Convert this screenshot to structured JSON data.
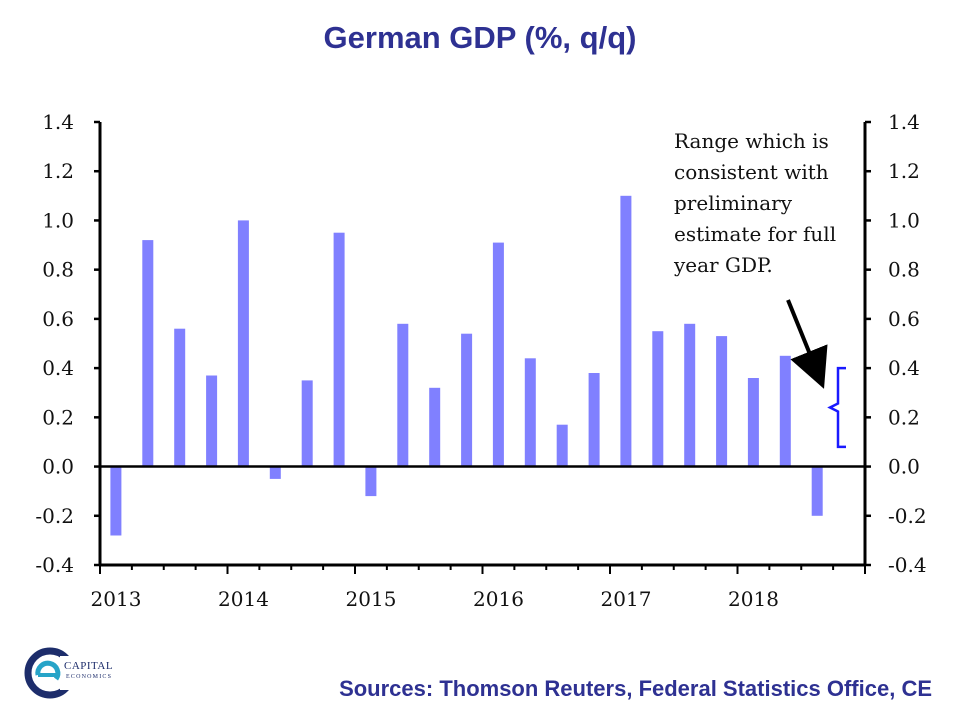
{
  "title": "German GDP (%, q/q)",
  "source": "Sources: Thomson Reuters, Federal Statistics Office, CE",
  "logo": {
    "name": "CAPITAL",
    "sub": "ECONOMICS"
  },
  "annotation": {
    "lines": [
      "Range which is",
      "consistent with",
      "preliminary",
      "estimate for full",
      "year GDP."
    ],
    "range": [
      0.08,
      0.4
    ]
  },
  "colors": {
    "bar": "#8080ff",
    "title": "#2e3192",
    "bracket": "#1a1aff"
  },
  "chart_data": {
    "type": "bar",
    "title": "German GDP (%, q/q)",
    "ylim": [
      -0.4,
      1.4
    ],
    "yticks": [
      "1.4",
      "1.2",
      "1.0",
      "0.8",
      "0.6",
      "0.4",
      "0.2",
      "0.0",
      "-0.2",
      "-0.4"
    ],
    "year_labels": [
      "2013",
      "2014",
      "2015",
      "2016",
      "2017",
      "2018"
    ],
    "categories": [
      "2013 Q1",
      "2013 Q2",
      "2013 Q3",
      "2013 Q4",
      "2014 Q1",
      "2014 Q2",
      "2014 Q3",
      "2014 Q4",
      "2015 Q1",
      "2015 Q2",
      "2015 Q3",
      "2015 Q4",
      "2016 Q1",
      "2016 Q2",
      "2016 Q3",
      "2016 Q4",
      "2017 Q1",
      "2017 Q2",
      "2017 Q3",
      "2017 Q4",
      "2018 Q1",
      "2018 Q2",
      "2018 Q3",
      "2018 Q4"
    ],
    "values": [
      -0.28,
      0.92,
      0.56,
      0.37,
      1.0,
      -0.05,
      0.35,
      0.95,
      -0.12,
      0.58,
      0.32,
      0.54,
      0.91,
      0.44,
      0.17,
      0.38,
      1.1,
      0.55,
      0.58,
      0.53,
      0.36,
      0.45,
      -0.2,
      null
    ],
    "grid": false,
    "legend": "none"
  }
}
